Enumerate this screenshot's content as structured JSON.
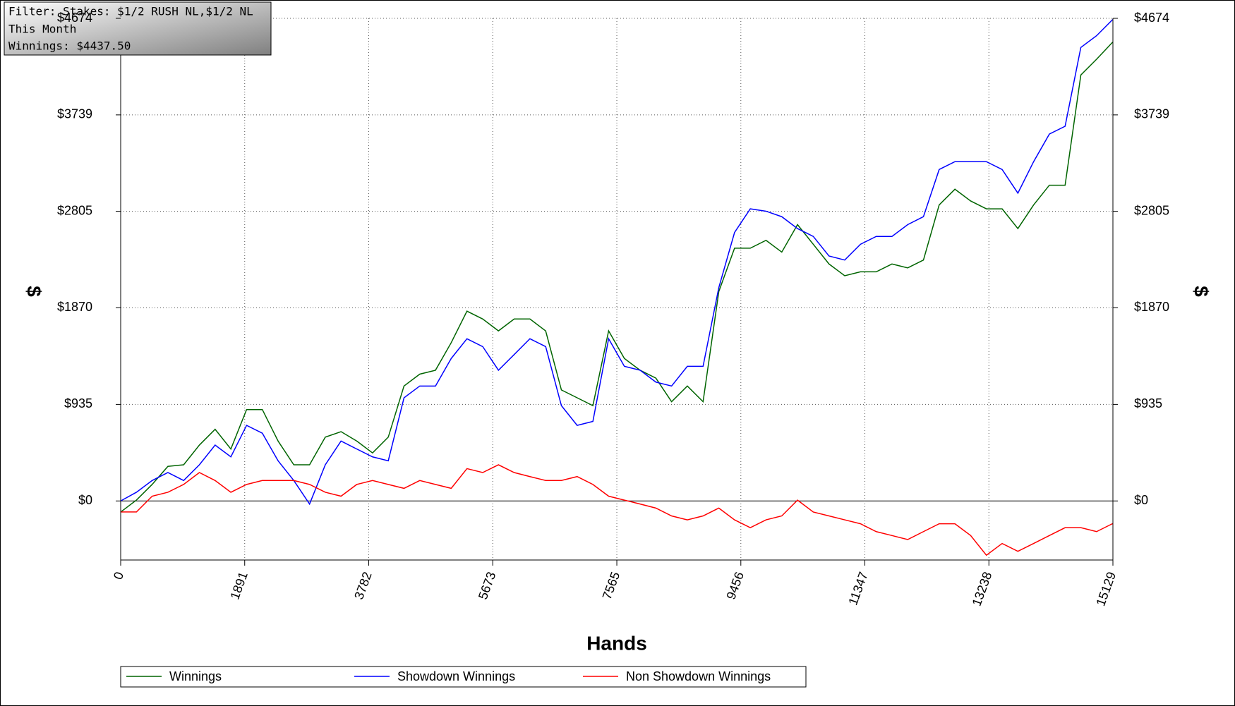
{
  "chart_data": {
    "type": "line",
    "filter_box": [
      "Filter: Stakes: $1/2 RUSH NL,$1/2 NL",
      "This Month",
      "Winnings: $4437.50"
    ],
    "xlabel": "Hands",
    "ylabel": "$",
    "y2label": "$",
    "x": [
      0,
      240,
      480,
      720,
      960,
      1200,
      1440,
      1680,
      1920,
      2160,
      2400,
      2640,
      2880,
      3120,
      3360,
      3600,
      3840,
      4080,
      4320,
      4560,
      4800,
      5040,
      5280,
      5520,
      5760,
      6000,
      6240,
      6480,
      6720,
      6960,
      7200,
      7440,
      7680,
      7920,
      8160,
      8400,
      8640,
      8880,
      9120,
      9360,
      9600,
      9840,
      10080,
      10320,
      10560,
      10800,
      11040,
      11280,
      11520,
      11760,
      12000,
      12240,
      12480,
      12720,
      12960,
      13200,
      13440,
      13680,
      13920,
      14160,
      14400,
      14640,
      14880,
      15120,
      15129
    ],
    "series": [
      {
        "name": "Winnings",
        "color": "#006400",
        "values": [
          -107,
          8,
          160,
          335,
          350,
          541,
          694,
          503,
          885,
          885,
          580,
          350,
          350,
          618,
          671,
          580,
          465,
          618,
          1113,
          1228,
          1266,
          1533,
          1838,
          1762,
          1647,
          1762,
          1762,
          1647,
          1075,
          999,
          923,
          1647,
          1380,
          1266,
          1190,
          961,
          1113,
          961,
          2028,
          2448,
          2448,
          2524,
          2410,
          2676,
          2486,
          2295,
          2181,
          2219,
          2219,
          2295,
          2257,
          2333,
          2867,
          3019,
          2905,
          2829,
          2829,
          2638,
          2867,
          3058,
          3058,
          4125,
          4278,
          4440,
          4437.5
        ]
      },
      {
        "name": "Showdown Winnings",
        "color": "#0000ff",
        "values": [
          0,
          84,
          198,
          275,
          198,
          350,
          541,
          427,
          732,
          656,
          389,
          198,
          -30,
          350,
          580,
          503,
          427,
          389,
          999,
          1113,
          1113,
          1380,
          1571,
          1495,
          1266,
          1418,
          1571,
          1495,
          923,
          732,
          770,
          1571,
          1304,
          1266,
          1151,
          1113,
          1304,
          1304,
          2066,
          2600,
          2829,
          2806,
          2753,
          2638,
          2562,
          2372,
          2333,
          2486,
          2562,
          2562,
          2676,
          2753,
          3210,
          3286,
          3286,
          3286,
          3210,
          2981,
          3286,
          3553,
          3629,
          4392,
          4506,
          4659,
          4660
        ]
      },
      {
        "name": "Non Showdown Winnings",
        "color": "#ff0000",
        "values": [
          -107,
          -107,
          46,
          84,
          160,
          275,
          198,
          84,
          160,
          198,
          198,
          198,
          160,
          84,
          46,
          160,
          198,
          160,
          122,
          198,
          160,
          122,
          313,
          275,
          350,
          275,
          236,
          198,
          198,
          236,
          160,
          46,
          8,
          -30,
          -69,
          -145,
          -183,
          -145,
          -69,
          -183,
          -259,
          -183,
          -145,
          8,
          -107,
          -145,
          -183,
          -221,
          -297,
          -335,
          -374,
          -297,
          -221,
          -221,
          -335,
          -526,
          -412,
          -488,
          -412,
          -335,
          -259,
          -259,
          -297,
          -221,
          -222
        ]
      }
    ],
    "xlim": [
      0,
      15129
    ],
    "xticks": [
      0,
      1891,
      3782,
      5673,
      7565,
      9456,
      11347,
      13238,
      15129
    ],
    "ylim": [
      -572,
      4674
    ],
    "yticks": [
      {
        "value": 0,
        "label": "$0"
      },
      {
        "value": 935,
        "label": "$935"
      },
      {
        "value": 1870,
        "label": "$1870"
      },
      {
        "value": 2805,
        "label": "$2805"
      },
      {
        "value": 3739,
        "label": "$3739"
      },
      {
        "value": 4674,
        "label": "$4674"
      }
    ],
    "grid": true
  }
}
